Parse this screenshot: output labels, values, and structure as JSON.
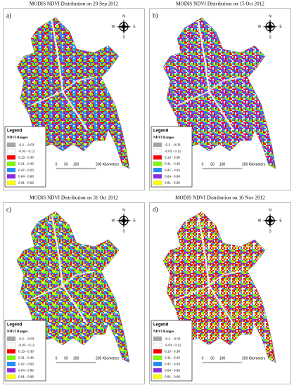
{
  "panels": [
    {
      "title": "MODIS NDVI Distribution on 29 Sep 2012",
      "label": "a)"
    },
    {
      "title": "MODIS NDVI Distribution on 15 Oct 2012",
      "label": "b)"
    },
    {
      "title": "MODIS NDVI Distribution on 31 Oct 2012",
      "label": "c)"
    },
    {
      "title": "MODIS NDVI Distribution on 16 Nov 2012",
      "label": "d)"
    }
  ],
  "legend": {
    "title": "Legend",
    "subtitle": "NDVI Ranges",
    "entries": [
      {
        "label": "-0.2 - -0.03",
        "color": "#a6a6a6"
      },
      {
        "label": "-0.03 - 0.12",
        "color": "#ffffff"
      },
      {
        "label": "0.13 - 0.30",
        "color": "#ff0000"
      },
      {
        "label": "0.31 - 0.46",
        "color": "#7cfc00"
      },
      {
        "label": "0.47 - 0.63",
        "color": "#1e90ff"
      },
      {
        "label": "0.64 - 0.80",
        "color": "#8a2be2"
      },
      {
        "label": "0.81 - 0.96",
        "color": "#ffff00"
      }
    ]
  },
  "compass": {
    "north": "N",
    "east": "E",
    "south": "S",
    "west": "W"
  },
  "scale_bar": [
    "0",
    "50",
    "100",
    "200 Kilometers"
  ]
}
